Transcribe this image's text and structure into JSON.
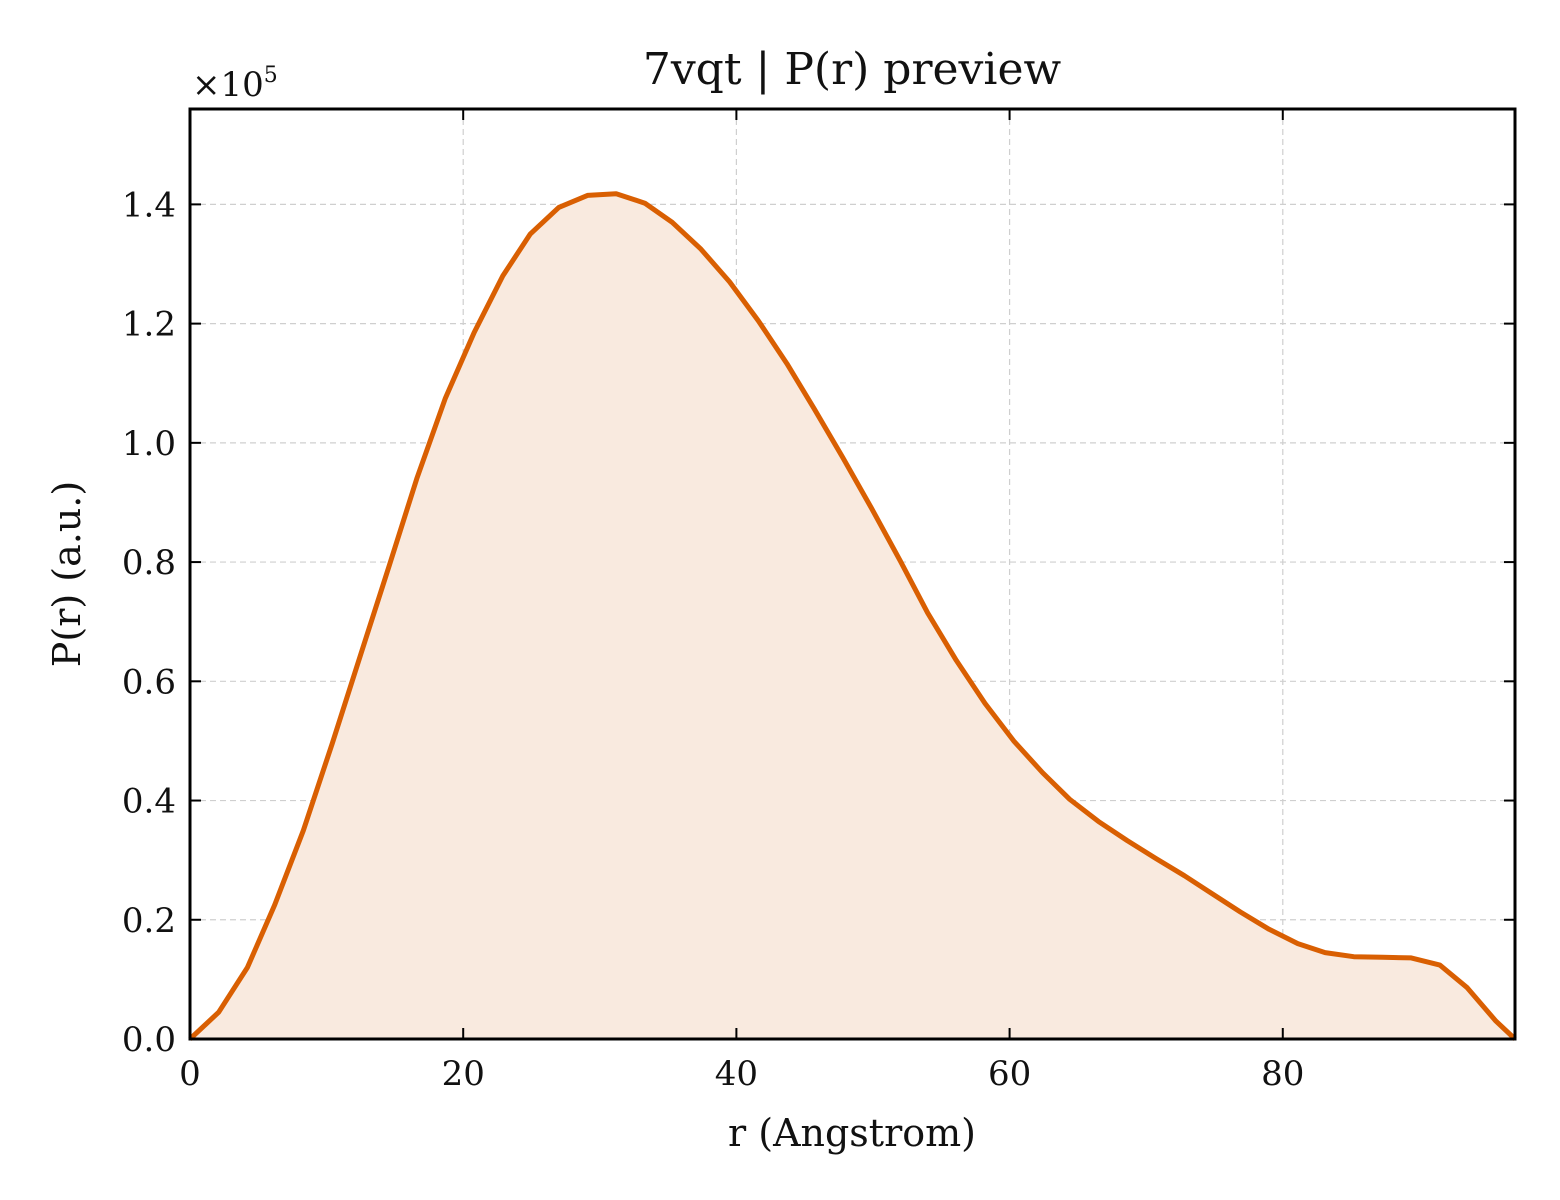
{
  "chart_data": {
    "type": "area",
    "title": "7vqt | P(r) preview",
    "xlabel": "r (Angstrom)",
    "ylabel": "P(r) (a.u.)",
    "y_multiplier_base": "×10",
    "y_multiplier_exp": "5",
    "xlim": [
      0,
      97
    ],
    "ylim": [
      0,
      1.56
    ],
    "x_ticks": [
      0,
      20,
      40,
      60,
      80
    ],
    "x_tick_labels": [
      "0",
      "20",
      "40",
      "60",
      "80"
    ],
    "y_ticks": [
      0,
      0.2,
      0.4,
      0.6,
      0.8,
      1.0,
      1.2,
      1.4
    ],
    "y_tick_labels": [
      "0.0",
      "0.2",
      "0.4",
      "0.6",
      "0.8",
      "1.0",
      "1.2",
      "1.4"
    ],
    "grid": true,
    "colors": {
      "line": "#d95f02",
      "fill": "#f9eadf"
    },
    "series": [
      {
        "x": [
          0,
          2.1,
          4.2,
          6.2,
          8.3,
          10.4,
          12.5,
          14.6,
          16.6,
          18.7,
          20.8,
          22.9,
          24.9,
          27.0,
          29.1,
          31.2,
          33.3,
          35.3,
          37.4,
          39.5,
          41.6,
          43.7,
          45.7,
          47.8,
          49.9,
          52.0,
          54.0,
          56.1,
          58.2,
          60.3,
          62.4,
          64.4,
          66.5,
          68.6,
          70.7,
          72.8,
          74.8,
          76.9,
          79.0,
          81.1,
          83.1,
          85.2,
          87.3,
          89.4,
          91.5,
          93.5,
          95.6,
          97.0
        ],
        "values": [
          0,
          0.045,
          0.12,
          0.225,
          0.35,
          0.495,
          0.645,
          0.795,
          0.94,
          1.075,
          1.185,
          1.28,
          1.35,
          1.395,
          1.415,
          1.418,
          1.402,
          1.37,
          1.325,
          1.27,
          1.205,
          1.133,
          1.057,
          0.975,
          0.89,
          0.802,
          0.715,
          0.635,
          0.563,
          0.5,
          0.447,
          0.402,
          0.365,
          0.333,
          0.303,
          0.274,
          0.244,
          0.213,
          0.184,
          0.16,
          0.145,
          0.138,
          0.137,
          0.136,
          0.124,
          0.086,
          0.03,
          0
        ]
      }
    ]
  }
}
